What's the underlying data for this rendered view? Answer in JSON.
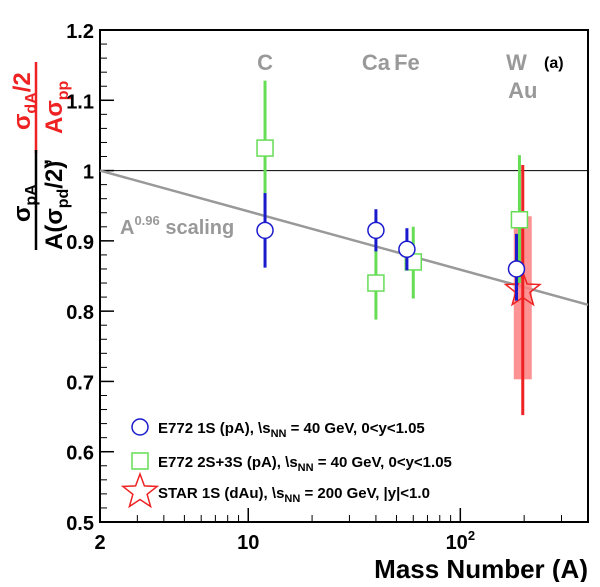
{
  "chart_data": {
    "type": "scatter",
    "panel_label": "(a)",
    "xlabel": "Mass Number (A)",
    "x_scale": "log",
    "xlim": [
      2,
      400
    ],
    "ylim": [
      0.5,
      1.2
    ],
    "x_tick_labels": [
      {
        "x": 2,
        "label": "2"
      },
      {
        "x": 10,
        "label": "10"
      },
      {
        "x": 100,
        "label": "10",
        "sup": "2"
      }
    ],
    "y_ticks": [
      0.5,
      0.6,
      0.7,
      0.8,
      0.9,
      1,
      1.1,
      1.2
    ],
    "y_tick_labels": [
      "0.5",
      "0.6",
      "0.7",
      "0.8",
      "0.9",
      "1",
      "1.1",
      "1.2"
    ],
    "ylabel_black": {
      "num_main": "σ",
      "num_sub": "pA",
      "den_pre": "A(σ",
      "den_sub": "pd",
      "den_post": "/2)"
    },
    "ylabel_red": {
      "num_main": "σ",
      "num_sub": "dA",
      "num_post": "/2",
      "den_pre": "Aσ",
      "den_sub": "pp"
    },
    "ylabel_separator": ",",
    "reference_line": {
      "y": 1.0
    },
    "scaling_curve": {
      "label_main": "A",
      "label_sup": "0.96",
      "label_rest": " scaling",
      "exponent": -0.04,
      "x_from": 2,
      "x_to": 400
    },
    "element_labels": [
      {
        "text": "C",
        "x": 12,
        "row": 1
      },
      {
        "text": "Ca",
        "x": 40,
        "row": 1
      },
      {
        "text": "Fe",
        "x": 56,
        "row": 1
      },
      {
        "text": "W",
        "x": 184,
        "row": 1
      },
      {
        "text": "Au",
        "x": 197,
        "row": 2
      }
    ],
    "series": [
      {
        "name": "E772 1S (pA),",
        "legend_suffix": " = 40 GeV, 0<y<1.05",
        "marker": "circle",
        "color": "#1a1acc",
        "points": [
          {
            "x": 12,
            "y": 0.915,
            "ylo": 0.862,
            "yhi": 0.968
          },
          {
            "x": 40,
            "y": 0.915,
            "ylo": 0.885,
            "yhi": 0.945
          },
          {
            "x": 56,
            "y": 0.888,
            "ylo": 0.858,
            "yhi": 0.918
          },
          {
            "x": 184,
            "y": 0.86,
            "ylo": 0.815,
            "yhi": 0.91
          }
        ]
      },
      {
        "name": "E772 2S+3S (pA),",
        "legend_suffix": " = 40 GeV, 0<y<1.05",
        "marker": "square",
        "color": "#66dd55",
        "points": [
          {
            "x": 12,
            "y": 1.032,
            "ylo": 0.935,
            "yhi": 1.128
          },
          {
            "x": 40,
            "y": 0.84,
            "ylo": 0.788,
            "yhi": 0.893
          },
          {
            "x": 60,
            "y": 0.87,
            "ylo": 0.818,
            "yhi": 0.92
          },
          {
            "x": 190,
            "y": 0.93,
            "ylo": 0.84,
            "yhi": 1.022
          }
        ]
      },
      {
        "name": "STAR 1S (dAu),",
        "legend_suffix": " = 200 GeV, |y|<1.0",
        "marker": "star",
        "color": "#ee2222",
        "points": [
          {
            "x": 197,
            "y": 0.83,
            "ylo": 0.652,
            "yhi": 1.008,
            "syslo": 0.703,
            "syshi": 0.935
          }
        ]
      }
    ],
    "legend_sqrt_symbol": "\\",
    "legend_s": "s",
    "legend_nn": "NN",
    "legend_placement": "bottom-left"
  }
}
